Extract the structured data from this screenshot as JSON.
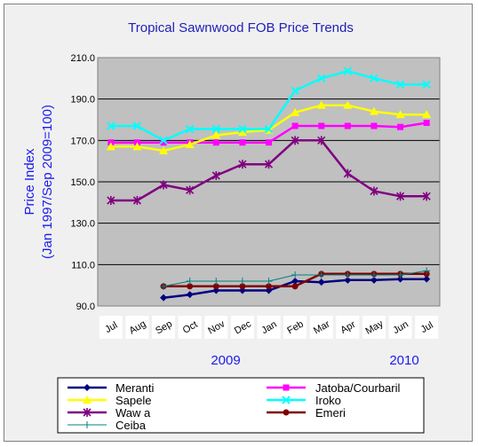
{
  "chart_data": {
    "type": "line",
    "title": "Tropical Sawnwood FOB Price Trends",
    "ylabel_line1": "Price Index",
    "ylabel_line2": "(Jan 1997/Sep 2009=100)",
    "ylim": [
      90,
      210
    ],
    "yticks": [
      "90.0",
      "110.0",
      "130.0",
      "150.0",
      "170.0",
      "190.0",
      "210.0"
    ],
    "categories": [
      "Jul",
      "Aug",
      "Sep",
      "Oct",
      "Nov",
      "Dec",
      "Jan",
      "Feb",
      "Mar",
      "Apr",
      "May",
      "Jun",
      "Jul"
    ],
    "year_labels": [
      "2009",
      "2010"
    ],
    "grid": true,
    "legend_position": "bottom",
    "series": [
      {
        "name": "Meranti",
        "color": "#000080",
        "marker": "diamond",
        "values": [
          null,
          null,
          94,
          95.5,
          97.5,
          97.5,
          97.5,
          102,
          101.5,
          102.5,
          102.5,
          103,
          103
        ]
      },
      {
        "name": "Jatoba/Courbaril",
        "color": "#ff00ff",
        "marker": "square",
        "values": [
          169,
          169,
          169,
          169,
          169,
          169,
          169,
          177,
          177,
          177,
          177,
          176.5,
          178.5
        ]
      },
      {
        "name": "Sapele",
        "color": "#ffff00",
        "marker": "triangle",
        "values": [
          167,
          167,
          165,
          168,
          172.5,
          174,
          175,
          183.5,
          187,
          187,
          184,
          182.5,
          182.5
        ]
      },
      {
        "name": "Iroko",
        "color": "#00ffff",
        "marker": "x",
        "values": [
          177,
          177,
          170,
          175.5,
          175.5,
          175.5,
          175.5,
          194,
          200,
          203.5,
          200,
          197,
          197
        ]
      },
      {
        "name": "Waw a",
        "color": "#800080",
        "marker": "star",
        "values": [
          141,
          141,
          148.5,
          146,
          153,
          158.5,
          158.5,
          170,
          170,
          154,
          145.5,
          143,
          143
        ]
      },
      {
        "name": "Emeri",
        "color": "#800000",
        "marker": "circle",
        "values": [
          null,
          null,
          99.5,
          99.5,
          99.5,
          99.5,
          99.5,
          99.5,
          105.5,
          105.5,
          105.5,
          105.5,
          105.5
        ]
      },
      {
        "name": "Ceiba",
        "color": "#008080",
        "marker": "plus",
        "values": [
          null,
          null,
          99.5,
          102,
          102,
          102,
          102,
          105,
          105,
          105,
          105,
          105,
          107
        ]
      }
    ]
  }
}
